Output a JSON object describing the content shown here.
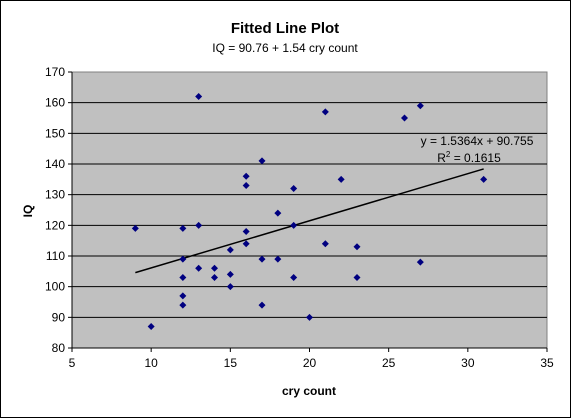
{
  "chart_data": {
    "type": "scatter",
    "title": "Fitted Line Plot",
    "subtitle": "IQ = 90.76 + 1.54 cry count",
    "xlabel": "cry count",
    "ylabel": "IQ",
    "xlim": [
      5,
      35
    ],
    "ylim": [
      80,
      170
    ],
    "xticks": [
      5,
      10,
      15,
      20,
      25,
      30,
      35
    ],
    "yticks": [
      80,
      90,
      100,
      110,
      120,
      130,
      140,
      150,
      160,
      170
    ],
    "grid": "horizontal",
    "plot_background": "#c0c0c0",
    "chart_background": "#ffffff",
    "marker_color": "#000080",
    "trendline_color": "#000000",
    "points": [
      {
        "x": 9,
        "y": 119
      },
      {
        "x": 10,
        "y": 87
      },
      {
        "x": 12,
        "y": 119
      },
      {
        "x": 12,
        "y": 109
      },
      {
        "x": 12,
        "y": 103
      },
      {
        "x": 12,
        "y": 97
      },
      {
        "x": 12,
        "y": 94
      },
      {
        "x": 13,
        "y": 162
      },
      {
        "x": 13,
        "y": 120
      },
      {
        "x": 13,
        "y": 106
      },
      {
        "x": 14,
        "y": 106
      },
      {
        "x": 14,
        "y": 103
      },
      {
        "x": 15,
        "y": 112
      },
      {
        "x": 15,
        "y": 104
      },
      {
        "x": 15,
        "y": 100
      },
      {
        "x": 16,
        "y": 136
      },
      {
        "x": 16,
        "y": 133
      },
      {
        "x": 16,
        "y": 118
      },
      {
        "x": 16,
        "y": 114
      },
      {
        "x": 17,
        "y": 141
      },
      {
        "x": 17,
        "y": 109
      },
      {
        "x": 17,
        "y": 94
      },
      {
        "x": 18,
        "y": 124
      },
      {
        "x": 18,
        "y": 109
      },
      {
        "x": 19,
        "y": 132
      },
      {
        "x": 19,
        "y": 120
      },
      {
        "x": 19,
        "y": 103
      },
      {
        "x": 20,
        "y": 90
      },
      {
        "x": 21,
        "y": 157
      },
      {
        "x": 21,
        "y": 114
      },
      {
        "x": 22,
        "y": 135
      },
      {
        "x": 23,
        "y": 113
      },
      {
        "x": 23,
        "y": 103
      },
      {
        "x": 26,
        "y": 155
      },
      {
        "x": 27,
        "y": 159
      },
      {
        "x": 27,
        "y": 108
      },
      {
        "x": 31,
        "y": 135
      }
    ],
    "trendline": {
      "slope": 1.5364,
      "intercept": 90.755,
      "x_range": [
        9,
        31
      ],
      "equation_label": "y = 1.5364x + 90.755",
      "r2_prefix": "R",
      "r2_sup": "2",
      "r2_suffix": " = 0.1615"
    }
  }
}
